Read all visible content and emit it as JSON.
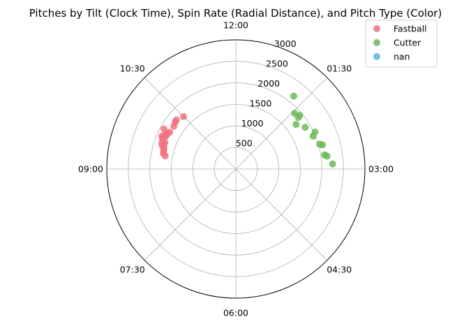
{
  "chart_data": {
    "type": "scatter",
    "subtype": "polar",
    "title": "Pitches by Tilt (Clock Time), Spin Rate (Radial Distance), and Pitch Type (Color)",
    "angular_axis": {
      "direction": "clockwise",
      "zero_at": "top",
      "tick_labels": [
        "12:00",
        "01:30",
        "03:00",
        "04:30",
        "06:00",
        "07:30",
        "09:00",
        "10:30"
      ]
    },
    "radial_axis": {
      "rlim": [
        0,
        3000
      ],
      "ticks": [
        500,
        1000,
        1500,
        2000,
        2500,
        3000
      ],
      "tick_labels": [
        "500",
        "1000",
        "1500",
        "2000",
        "2500",
        "3000"
      ],
      "grid": true
    },
    "legend": {
      "placement": "upper-right",
      "entries": [
        "Fastball",
        "Cutter",
        "nan"
      ]
    },
    "series": [
      {
        "name": "Fastball",
        "color": "#f0727f",
        "points": [
          {
            "tilt": "10:30",
            "spin": 1720
          },
          {
            "tilt": "10:19",
            "spin": 1790
          },
          {
            "tilt": "10:15",
            "spin": 1780
          },
          {
            "tilt": "10:09",
            "spin": 1750
          },
          {
            "tilt": "09:58",
            "spin": 1910
          },
          {
            "tilt": "09:58",
            "spin": 1760
          },
          {
            "tilt": "09:54",
            "spin": 1790
          },
          {
            "tilt": "09:52",
            "spin": 1810
          },
          {
            "tilt": "09:50",
            "spin": 1800
          },
          {
            "tilt": "09:48",
            "spin": 1880
          },
          {
            "tilt": "09:46",
            "spin": 1840
          },
          {
            "tilt": "09:45",
            "spin": 1850
          },
          {
            "tilt": "09:41",
            "spin": 1760
          },
          {
            "tilt": "09:38",
            "spin": 1820
          },
          {
            "tilt": "09:36",
            "spin": 1760
          },
          {
            "tilt": "09:34",
            "spin": 1780
          },
          {
            "tilt": "09:32",
            "spin": 1740
          },
          {
            "tilt": "09:28",
            "spin": 1730
          },
          {
            "tilt": "09:24",
            "spin": 1720
          },
          {
            "tilt": "09:21",
            "spin": 1670
          }
        ]
      },
      {
        "name": "Cutter",
        "color": "#6cb956",
        "points": [
          {
            "tilt": "01:17",
            "spin": 2160
          },
          {
            "tilt": "01:33",
            "spin": 1880
          },
          {
            "tilt": "01:40",
            "spin": 1940
          },
          {
            "tilt": "01:41",
            "spin": 1880
          },
          {
            "tilt": "01:47",
            "spin": 1740
          },
          {
            "tilt": "01:58",
            "spin": 1880
          },
          {
            "tilt": "02:10",
            "spin": 2030
          },
          {
            "tilt": "02:14",
            "spin": 1950
          },
          {
            "tilt": "02:27",
            "spin": 2030
          },
          {
            "tilt": "02:29",
            "spin": 2090
          },
          {
            "tilt": "02:42",
            "spin": 2090
          },
          {
            "tilt": "02:44",
            "spin": 2140
          },
          {
            "tilt": "02:54",
            "spin": 2250
          }
        ]
      },
      {
        "name": "nan",
        "color": "#5ab1e6",
        "points": []
      }
    ]
  }
}
